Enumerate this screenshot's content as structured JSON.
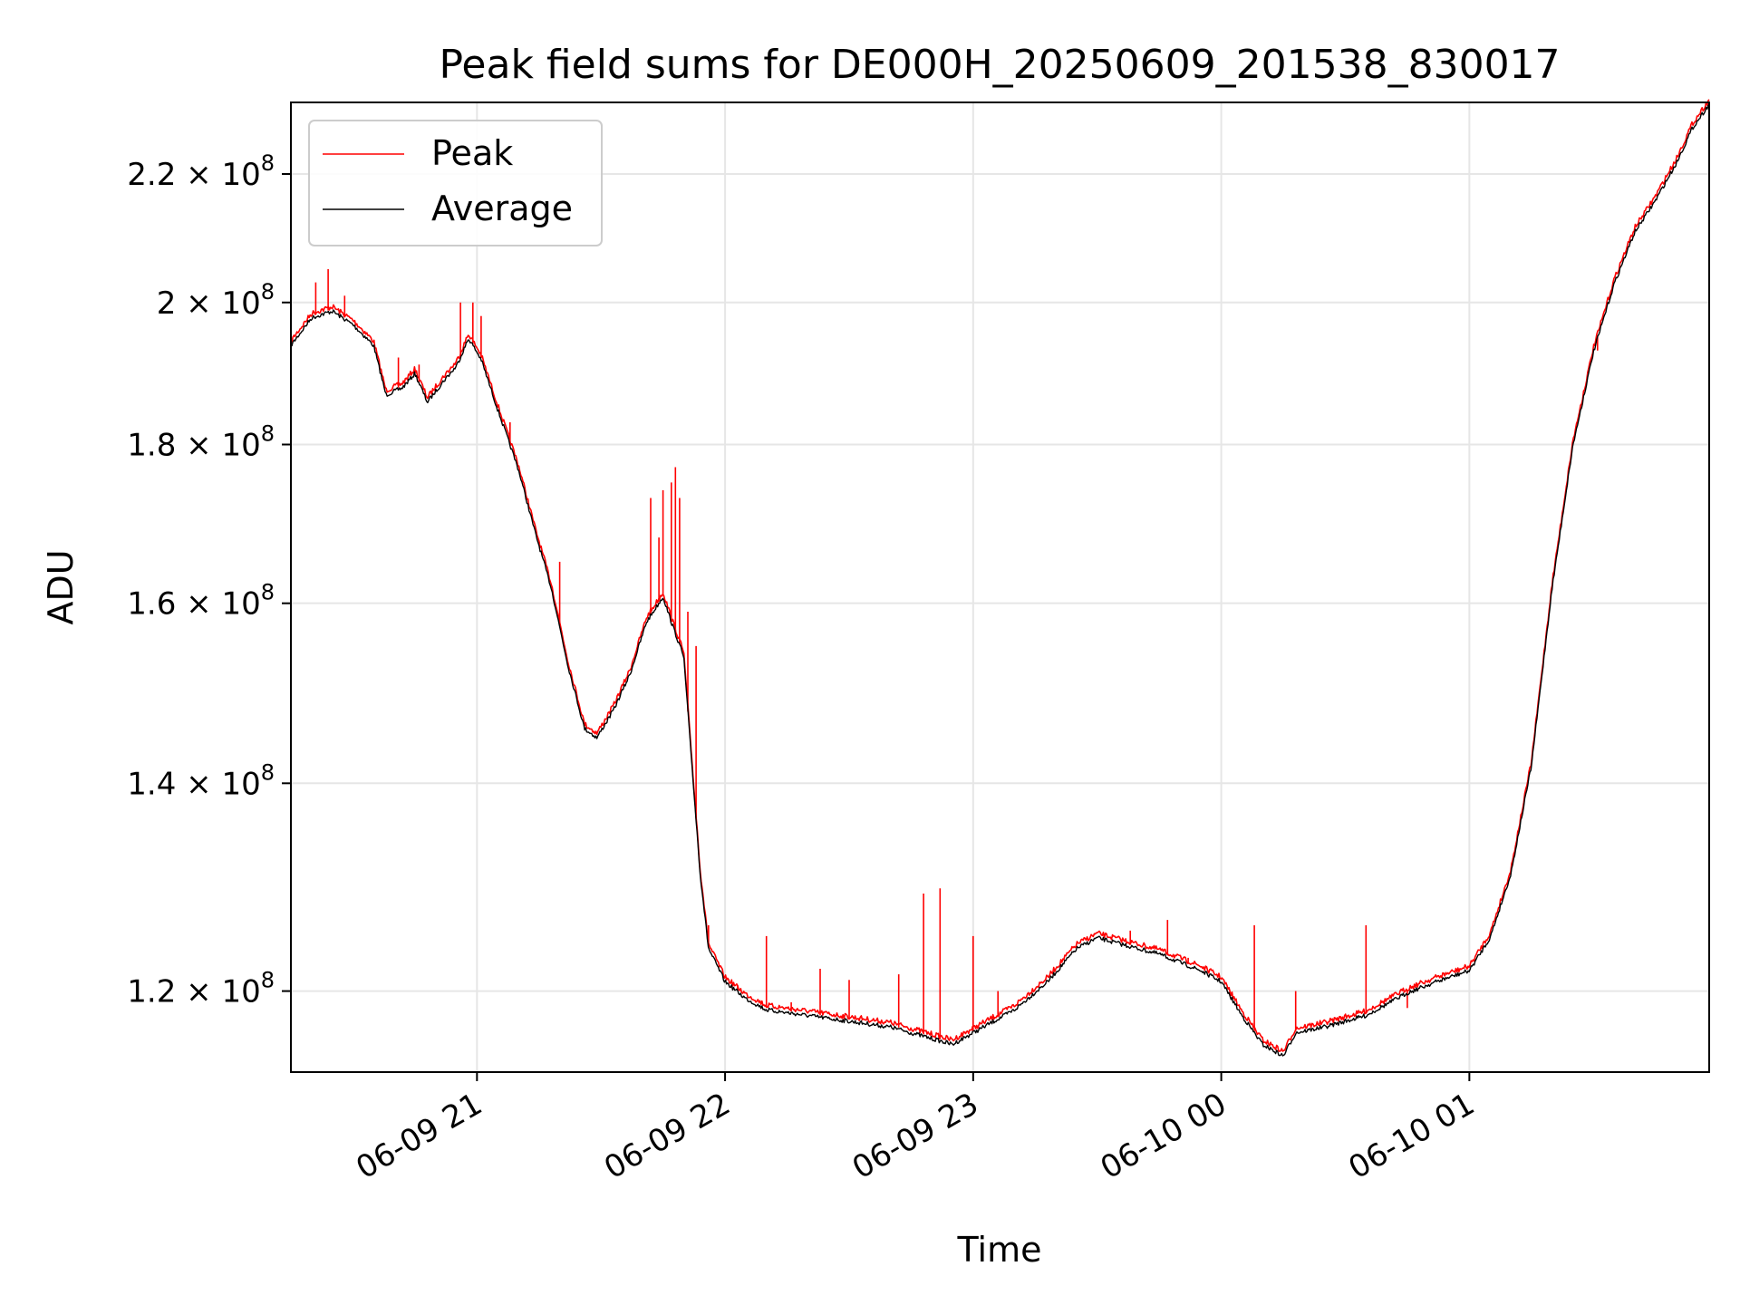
{
  "chart_data": {
    "type": "line",
    "title": "Peak field sums for DE000H_20250609_201538_830017",
    "xlabel": "Time",
    "ylabel": "ADU",
    "xlim": [
      "2025-06-09 20:15",
      "2025-06-10 01:58"
    ],
    "ylim": [
      113000000,
      232000000
    ],
    "y_scale": "log",
    "grid": true,
    "legend_position": "upper left",
    "x_ticks": [
      {
        "t": "2025-06-09 21:00",
        "label": "06-09 21"
      },
      {
        "t": "2025-06-09 22:00",
        "label": "06-09 22"
      },
      {
        "t": "2025-06-09 23:00",
        "label": "06-09 23"
      },
      {
        "t": "2025-06-10 00:00",
        "label": "06-10 00"
      },
      {
        "t": "2025-06-10 01:00",
        "label": "06-10 01"
      }
    ],
    "y_ticks": [
      {
        "value": 120000000,
        "mantissa": "1.2",
        "exponent": "8"
      },
      {
        "value": 140000000,
        "mantissa": "1.4",
        "exponent": "8"
      },
      {
        "value": 160000000,
        "mantissa": "1.6",
        "exponent": "8"
      },
      {
        "value": 180000000,
        "mantissa": "1.8",
        "exponent": "8"
      },
      {
        "value": 200000000,
        "mantissa": "2",
        "exponent": "8"
      },
      {
        "value": 220000000,
        "mantissa": "2.2",
        "exponent": "8"
      }
    ],
    "series": [
      {
        "name": "Average",
        "color": "#000000",
        "points": [
          [
            "2025-06-09 20:15",
            194000000
          ],
          [
            "2025-06-09 20:20",
            198000000
          ],
          [
            "2025-06-09 20:25",
            199000000
          ],
          [
            "2025-06-09 20:30",
            197000000
          ],
          [
            "2025-06-09 20:35",
            194000000
          ],
          [
            "2025-06-09 20:38",
            187000000
          ],
          [
            "2025-06-09 20:42",
            188000000
          ],
          [
            "2025-06-09 20:45",
            190000000
          ],
          [
            "2025-06-09 20:48",
            186000000
          ],
          [
            "2025-06-09 20:52",
            189000000
          ],
          [
            "2025-06-09 20:55",
            191000000
          ],
          [
            "2025-06-09 20:58",
            195000000
          ],
          [
            "2025-06-09 21:01",
            192000000
          ],
          [
            "2025-06-09 21:05",
            185000000
          ],
          [
            "2025-06-09 21:10",
            177000000
          ],
          [
            "2025-06-09 21:14",
            169000000
          ],
          [
            "2025-06-09 21:18",
            162000000
          ],
          [
            "2025-06-09 21:22",
            153000000
          ],
          [
            "2025-06-09 21:26",
            146000000
          ],
          [
            "2025-06-09 21:29",
            145000000
          ],
          [
            "2025-06-09 21:33",
            148000000
          ],
          [
            "2025-06-09 21:37",
            152000000
          ],
          [
            "2025-06-09 21:41",
            158000000
          ],
          [
            "2025-06-09 21:45",
            161000000
          ],
          [
            "2025-06-09 21:47",
            158000000
          ],
          [
            "2025-06-09 21:50",
            154000000
          ],
          [
            "2025-06-09 21:52",
            142000000
          ],
          [
            "2025-06-09 21:54",
            131000000
          ],
          [
            "2025-06-09 21:56",
            124000000
          ],
          [
            "2025-06-09 22:00",
            121000000
          ],
          [
            "2025-06-09 22:05",
            119500000
          ],
          [
            "2025-06-09 22:10",
            118500000
          ],
          [
            "2025-06-09 22:20",
            118000000
          ],
          [
            "2025-06-09 22:30",
            117500000
          ],
          [
            "2025-06-09 22:40",
            117000000
          ],
          [
            "2025-06-09 22:50",
            116000000
          ],
          [
            "2025-06-09 22:55",
            115500000
          ],
          [
            "2025-06-09 23:00",
            116500000
          ],
          [
            "2025-06-09 23:10",
            118500000
          ],
          [
            "2025-06-09 23:18",
            121000000
          ],
          [
            "2025-06-09 23:25",
            124000000
          ],
          [
            "2025-06-09 23:30",
            125000000
          ],
          [
            "2025-06-09 23:35",
            124500000
          ],
          [
            "2025-06-09 23:45",
            123500000
          ],
          [
            "2025-06-09 23:55",
            122000000
          ],
          [
            "2025-06-10 00:00",
            121000000
          ],
          [
            "2025-06-10 00:05",
            118000000
          ],
          [
            "2025-06-10 00:10",
            115500000
          ],
          [
            "2025-06-10 00:15",
            114500000
          ],
          [
            "2025-06-10 00:18",
            116500000
          ],
          [
            "2025-06-10 00:25",
            117000000
          ],
          [
            "2025-06-10 00:35",
            118000000
          ],
          [
            "2025-06-10 00:45",
            120000000
          ],
          [
            "2025-06-10 00:52",
            121000000
          ],
          [
            "2025-06-10 01:00",
            122000000
          ],
          [
            "2025-06-10 01:05",
            125000000
          ],
          [
            "2025-06-10 01:10",
            131000000
          ],
          [
            "2025-06-10 01:15",
            142000000
          ],
          [
            "2025-06-10 01:20",
            162000000
          ],
          [
            "2025-06-10 01:25",
            180000000
          ],
          [
            "2025-06-10 01:30",
            193000000
          ],
          [
            "2025-06-10 01:35",
            203000000
          ],
          [
            "2025-06-10 01:40",
            211000000
          ],
          [
            "2025-06-10 01:45",
            216000000
          ],
          [
            "2025-06-10 01:50",
            222000000
          ],
          [
            "2025-06-10 01:54",
            228000000
          ],
          [
            "2025-06-10 01:58",
            232000000
          ]
        ]
      },
      {
        "name": "Peak",
        "color": "#ff0000",
        "spikes": [
          [
            "2025-06-09 20:21",
            203000000
          ],
          [
            "2025-06-09 20:24",
            205000000
          ],
          [
            "2025-06-09 20:28",
            201000000
          ],
          [
            "2025-06-09 20:41",
            192000000
          ],
          [
            "2025-06-09 20:46",
            191000000
          ],
          [
            "2025-06-09 20:56",
            200000000
          ],
          [
            "2025-06-09 20:59",
            200000000
          ],
          [
            "2025-06-09 21:01",
            198000000
          ],
          [
            "2025-06-09 21:08",
            183000000
          ],
          [
            "2025-06-09 21:20",
            165000000
          ],
          [
            "2025-06-09 21:42",
            173000000
          ],
          [
            "2025-06-09 21:44",
            168000000
          ],
          [
            "2025-06-09 21:45",
            174000000
          ],
          [
            "2025-06-09 21:47",
            175000000
          ],
          [
            "2025-06-09 21:48",
            177000000
          ],
          [
            "2025-06-09 21:49",
            173000000
          ],
          [
            "2025-06-09 21:51",
            159000000
          ],
          [
            "2025-06-09 21:53",
            155000000
          ],
          [
            "2025-06-09 21:56",
            126000000
          ],
          [
            "2025-06-09 22:03",
            120500000
          ],
          [
            "2025-06-09 22:10",
            125000000
          ],
          [
            "2025-06-09 22:16",
            119000000
          ],
          [
            "2025-06-09 22:23",
            122000000
          ],
          [
            "2025-06-09 22:30",
            121000000
          ],
          [
            "2025-06-09 22:42",
            121500000
          ],
          [
            "2025-06-09 22:48",
            129000000
          ],
          [
            "2025-06-09 22:52",
            129500000
          ],
          [
            "2025-06-09 23:00",
            125000000
          ],
          [
            "2025-06-09 23:06",
            120000000
          ],
          [
            "2025-06-09 23:38",
            125500000
          ],
          [
            "2025-06-09 23:47",
            126500000
          ],
          [
            "2025-06-09 23:52",
            123000000
          ],
          [
            "2025-06-10 00:08",
            126000000
          ],
          [
            "2025-06-10 00:18",
            120000000
          ],
          [
            "2025-06-10 00:35",
            126000000
          ],
          [
            "2025-06-10 00:45",
            118500000
          ],
          [
            "2025-06-10 01:31",
            193000000
          ]
        ]
      }
    ]
  }
}
